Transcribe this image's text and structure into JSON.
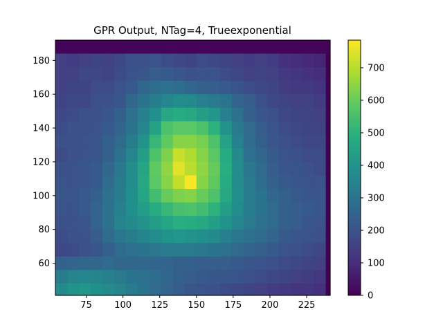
{
  "chart_data": {
    "type": "heatmap",
    "title": "GPR Output, NTag=4, Trueexponential",
    "xlabel": "",
    "ylabel": "",
    "x_range": [
      54,
      241
    ],
    "y_range": [
      41,
      192
    ],
    "cell_size": 8,
    "x_ticks": [
      "75",
      "100",
      "125",
      "150",
      "175",
      "200",
      "225"
    ],
    "x_tick_values": [
      75,
      100,
      125,
      150,
      175,
      200,
      225
    ],
    "y_ticks": [
      "60",
      "80",
      "100",
      "120",
      "140",
      "160",
      "180"
    ],
    "y_tick_values": [
      60,
      80,
      100,
      120,
      140,
      160,
      180
    ],
    "colorbar": {
      "range": [
        0,
        785
      ],
      "ticks": [
        "0",
        "100",
        "200",
        "300",
        "400",
        "500",
        "600",
        "700"
      ],
      "tick_values": [
        0,
        100,
        200,
        300,
        400,
        500,
        600,
        700
      ],
      "colormap": "viridis"
    },
    "grid": false,
    "values": [
      [
        10,
        10,
        10,
        10,
        10,
        10,
        10,
        10,
        10,
        10,
        10,
        10,
        10,
        10,
        10,
        10,
        10,
        10,
        10,
        10,
        10,
        10,
        10,
        10
      ],
      [
        150,
        140,
        150,
        160,
        150,
        170,
        190,
        190,
        200,
        180,
        170,
        160,
        180,
        170,
        160,
        150,
        140,
        150,
        140,
        110,
        100,
        90,
        80,
        0
      ],
      [
        150,
        150,
        170,
        170,
        160,
        180,
        200,
        210,
        230,
        220,
        210,
        190,
        200,
        200,
        180,
        170,
        150,
        160,
        150,
        130,
        120,
        110,
        100,
        0
      ],
      [
        150,
        160,
        160,
        180,
        180,
        200,
        220,
        260,
        280,
        290,
        280,
        260,
        240,
        230,
        220,
        200,
        180,
        170,
        160,
        140,
        130,
        130,
        120,
        0
      ],
      [
        160,
        170,
        170,
        190,
        190,
        210,
        260,
        300,
        330,
        360,
        380,
        370,
        340,
        320,
        300,
        250,
        230,
        190,
        170,
        160,
        150,
        150,
        140,
        0
      ],
      [
        170,
        180,
        190,
        190,
        210,
        240,
        290,
        340,
        390,
        470,
        480,
        470,
        440,
        410,
        340,
        290,
        240,
        210,
        190,
        170,
        160,
        160,
        150,
        0
      ],
      [
        180,
        190,
        190,
        200,
        220,
        250,
        300,
        360,
        450,
        560,
        580,
        580,
        560,
        500,
        400,
        320,
        270,
        230,
        200,
        180,
        170,
        160,
        160,
        0
      ],
      [
        190,
        190,
        200,
        210,
        240,
        270,
        330,
        400,
        520,
        590,
        640,
        640,
        620,
        560,
        450,
        340,
        280,
        240,
        210,
        190,
        180,
        170,
        170,
        0
      ],
      [
        180,
        190,
        200,
        210,
        240,
        290,
        360,
        440,
        560,
        630,
        720,
        690,
        640,
        580,
        480,
        370,
        290,
        260,
        220,
        200,
        190,
        180,
        180,
        0
      ],
      [
        190,
        200,
        210,
        220,
        260,
        310,
        380,
        460,
        590,
        650,
        750,
        700,
        650,
        600,
        490,
        380,
        310,
        270,
        230,
        210,
        200,
        190,
        180,
        0
      ],
      [
        200,
        200,
        210,
        220,
        270,
        320,
        380,
        470,
        580,
        640,
        710,
        780,
        640,
        590,
        480,
        380,
        320,
        280,
        240,
        220,
        210,
        200,
        200,
        0
      ],
      [
        210,
        210,
        220,
        240,
        290,
        330,
        390,
        460,
        540,
        600,
        630,
        640,
        600,
        560,
        470,
        390,
        330,
        300,
        260,
        240,
        220,
        210,
        210,
        0
      ],
      [
        200,
        200,
        220,
        250,
        290,
        340,
        390,
        430,
        480,
        520,
        550,
        560,
        540,
        500,
        440,
        380,
        330,
        300,
        270,
        240,
        230,
        220,
        210,
        0
      ],
      [
        190,
        200,
        210,
        250,
        290,
        350,
        370,
        400,
        430,
        460,
        490,
        480,
        470,
        440,
        400,
        360,
        320,
        290,
        270,
        240,
        230,
        210,
        200,
        0
      ],
      [
        180,
        190,
        200,
        230,
        270,
        310,
        330,
        350,
        380,
        400,
        410,
        400,
        390,
        370,
        340,
        310,
        290,
        270,
        250,
        220,
        210,
        200,
        190,
        0
      ],
      [
        170,
        180,
        190,
        210,
        240,
        270,
        290,
        300,
        310,
        320,
        320,
        320,
        310,
        300,
        290,
        270,
        250,
        240,
        220,
        200,
        190,
        180,
        170,
        0
      ],
      [
        240,
        250,
        260,
        260,
        270,
        260,
        260,
        260,
        250,
        250,
        240,
        240,
        230,
        230,
        230,
        220,
        210,
        200,
        190,
        180,
        170,
        160,
        150,
        0
      ],
      [
        330,
        350,
        360,
        350,
        340,
        320,
        300,
        290,
        280,
        260,
        240,
        230,
        220,
        210,
        210,
        200,
        190,
        180,
        170,
        160,
        150,
        140,
        130,
        0
      ],
      [
        370,
        400,
        410,
        390,
        370,
        350,
        320,
        300,
        270,
        250,
        230,
        210,
        200,
        190,
        180,
        170,
        160,
        150,
        140,
        130,
        120,
        120,
        110,
        0
      ],
      [
        350,
        380,
        400,
        380,
        360,
        330,
        300,
        270,
        240,
        220,
        200,
        180,
        170,
        160,
        150,
        140,
        130,
        120,
        110,
        100,
        100,
        90,
        90,
        0
      ],
      [
        330,
        360,
        370,
        350,
        320,
        290,
        260,
        230,
        200,
        180,
        160,
        150,
        140,
        130,
        120,
        110,
        100,
        90,
        80,
        70,
        70,
        70,
        60,
        0
      ],
      [
        320,
        340,
        350,
        330,
        300,
        270,
        240,
        210,
        180,
        160,
        140,
        130,
        110,
        110,
        100,
        90,
        80,
        70,
        70,
        60,
        60,
        60,
        50,
        0
      ]
    ]
  }
}
